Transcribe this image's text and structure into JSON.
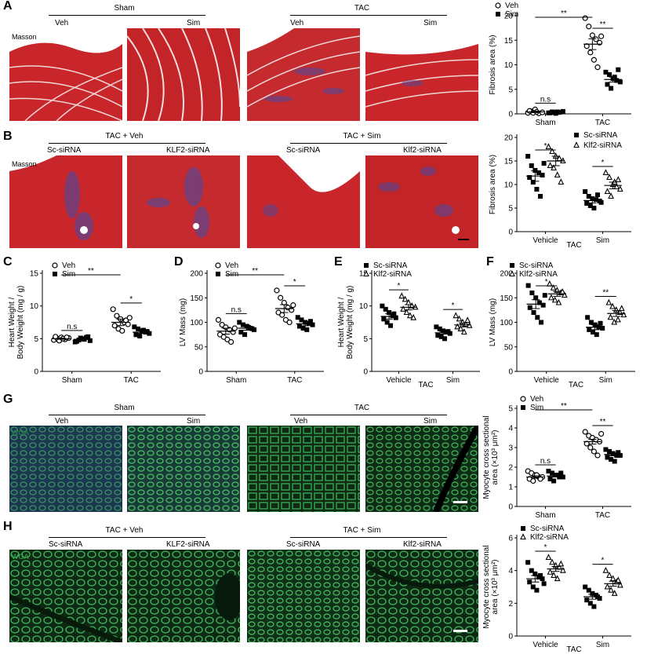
{
  "panels": {
    "A": {
      "letter": "A",
      "group1": "Sham",
      "group2": "TAC",
      "g1_left": "Veh",
      "g1_right": "Sim",
      "g2_left": "Veh",
      "g2_right": "Sim",
      "stain": "Masson"
    },
    "B": {
      "letter": "B",
      "group1": "TAC + Veh",
      "group2": "TAC + Sim",
      "g1_left": "Sc-siRNA",
      "g1_right": "KLF2-siRNA",
      "g2_left": "Sc-siRNA",
      "g2_right": "Klf2-siRNA",
      "stain": "Masson"
    },
    "C": {
      "letter": "C"
    },
    "D": {
      "letter": "D"
    },
    "E": {
      "letter": "E"
    },
    "F": {
      "letter": "F"
    },
    "G": {
      "letter": "G",
      "group1": "Sham",
      "group2": "TAC",
      "g1_left": "Veh",
      "g1_right": "Sim",
      "g2_left": "Veh",
      "g2_right": "Sim",
      "stain": "WGA"
    },
    "H": {
      "letter": "H",
      "group1": "TAC + Veh",
      "group2": "TAC + Sim",
      "g1_left": "Sc-siRNA",
      "g1_right": "KLF2-siRNA",
      "g2_left": "Sc-siRNA",
      "g2_right": "Klf2-siRNA",
      "stain": "WGA"
    }
  },
  "colors": {
    "masson_red": "#c8262b",
    "masson_blue": "#4a4aa0",
    "wga_green": "#2fae45",
    "wga_dark": "#0f2a14"
  },
  "chart_data": [
    {
      "id": "A",
      "type": "scatter",
      "categories": [
        "Sham",
        "TAC"
      ],
      "ylabel": "Fibrosis area (%)",
      "ylim": [
        0,
        20
      ],
      "yticks": [
        0,
        5,
        10,
        15,
        20
      ],
      "legend": [
        "Veh",
        "Sim"
      ],
      "legend_position": "top",
      "series": [
        {
          "name": "Veh",
          "marker": "open-circle",
          "mean": [
            0.4,
            14.2
          ],
          "sem": [
            0.15,
            1.1
          ],
          "values": [
            [
              0.2,
              0.5,
              0.9,
              0.1,
              0.3,
              0.6,
              0.2,
              0.4
            ],
            [
              19.5,
              17.8,
              16.0,
              15.2,
              14.5,
              13.8,
              12.5,
              11.0,
              9.5,
              15.8
            ]
          ]
        },
        {
          "name": "Sim",
          "marker": "filled-square",
          "mean": [
            0.3,
            7.0
          ],
          "sem": [
            0.1,
            0.5
          ],
          "values": [
            [
              0.2,
              0.4,
              0.1,
              0.3,
              0.5,
              0.2,
              0.3,
              0.4
            ],
            [
              8.5,
              8.0,
              7.2,
              6.8,
              6.5,
              6.0,
              5.2,
              7.5,
              9.0
            ]
          ]
        }
      ],
      "annotations": [
        {
          "text": "n.s",
          "pair": [
            [
              0,
              0
            ],
            [
              0,
              1
            ]
          ]
        },
        {
          "text": "**",
          "pair": [
            [
              0,
              0
            ],
            [
              1,
              0
            ]
          ]
        },
        {
          "text": "**",
          "pair": [
            [
              1,
              0
            ],
            [
              1,
              1
            ]
          ]
        }
      ]
    },
    {
      "id": "B",
      "type": "scatter",
      "categories": [
        "Vehicle",
        "Sim"
      ],
      "xlabel": "TAC",
      "ylabel": "Fibrosis area (%)",
      "ylim": [
        0,
        20
      ],
      "yticks": [
        0,
        5,
        10,
        15,
        20
      ],
      "legend": [
        "Sc-siRNA",
        "Klf2-siRNA"
      ],
      "legend_position": "top",
      "series": [
        {
          "name": "Sc-siRNA",
          "marker": "filled-square",
          "mean": [
            11.8,
            6.6
          ],
          "sem": [
            1.1,
            0.5
          ],
          "values": [
            [
              16.0,
              14.0,
              13.0,
              12.5,
              12.0,
              11.5,
              10.5,
              9.0,
              7.5,
              14.5
            ],
            [
              8.5,
              7.5,
              7.0,
              6.8,
              6.5,
              6.0,
              5.5,
              5.0,
              7.8,
              6.2
            ]
          ]
        },
        {
          "name": "Klf2-siRNA",
          "marker": "open-triangle",
          "mean": [
            15.0,
            9.8
          ],
          "sem": [
            1.0,
            0.7
          ],
          "values": [
            [
              18.0,
              17.0,
              16.0,
              15.5,
              15.0,
              14.0,
              13.5,
              12.0,
              10.5
            ],
            [
              12.5,
              11.5,
              10.0,
              9.5,
              9.0,
              8.5,
              7.5,
              10.5,
              11.0
            ]
          ]
        }
      ],
      "annotations": [
        {
          "text": "*",
          "pair": [
            [
              0,
              0
            ],
            [
              0,
              1
            ]
          ]
        },
        {
          "text": "*",
          "pair": [
            [
              1,
              0
            ],
            [
              1,
              1
            ]
          ]
        }
      ]
    },
    {
      "id": "C",
      "type": "scatter",
      "categories": [
        "Sham",
        "TAC"
      ],
      "ylabel_lines": [
        "Heart Weight /",
        "Body Weight (mg / g)"
      ],
      "ylim": [
        0,
        15
      ],
      "yticks": [
        0,
        5,
        10,
        15
      ],
      "legend": [
        "Veh",
        "Sim"
      ],
      "legend_position": "top",
      "series": [
        {
          "name": "Veh",
          "marker": "open-circle",
          "mean": [
            5.0,
            7.5
          ],
          "sem": [
            0.1,
            0.5
          ],
          "values": [
            [
              4.8,
              5.0,
              5.2,
              4.9,
              5.1,
              5.3,
              4.7,
              5.0,
              5.2
            ],
            [
              9.5,
              8.5,
              8.0,
              7.5,
              7.2,
              7.0,
              6.5,
              6.2,
              7.8,
              8.2
            ]
          ]
        },
        {
          "name": "Sim",
          "marker": "filled-square",
          "mean": [
            4.9,
            6.0
          ],
          "sem": [
            0.1,
            0.2
          ],
          "values": [
            [
              4.5,
              4.8,
              5.0,
              5.2,
              4.7,
              4.6,
              5.1,
              4.9,
              5.3
            ],
            [
              6.8,
              6.5,
              6.2,
              6.0,
              5.8,
              5.6,
              5.4,
              6.3,
              6.1
            ]
          ]
        }
      ],
      "annotations": [
        {
          "text": "n.s",
          "pair": [
            [
              0,
              0
            ],
            [
              0,
              1
            ]
          ]
        },
        {
          "text": "**",
          "pair": [
            [
              0,
              0
            ],
            [
              1,
              0
            ]
          ]
        },
        {
          "text": "*",
          "pair": [
            [
              1,
              0
            ],
            [
              1,
              1
            ]
          ]
        }
      ]
    },
    {
      "id": "D",
      "type": "scatter",
      "categories": [
        "Sham",
        "TAC"
      ],
      "ylabel": "LV Mass (mg)",
      "ylim": [
        0,
        200
      ],
      "yticks": [
        0,
        50,
        100,
        150,
        200
      ],
      "legend": [
        "Veh",
        "Sim"
      ],
      "legend_position": "top",
      "series": [
        {
          "name": "Veh",
          "marker": "open-circle",
          "mean": [
            82,
            128
          ],
          "sem": [
            6,
            8
          ],
          "values": [
            [
              105,
              95,
              90,
              85,
              80,
              75,
              70,
              65,
              60,
              88
            ],
            [
              165,
              150,
              140,
              130,
              125,
              120,
              115,
              105,
              100,
              135
            ]
          ]
        },
        {
          "name": "Sim",
          "marker": "filled-square",
          "mean": [
            88,
            97
          ],
          "sem": [
            4,
            4
          ],
          "values": [
            [
              100,
              95,
              92,
              88,
              85,
              80,
              75,
              90,
              87
            ],
            [
              110,
              105,
              100,
              98,
              95,
              92,
              88,
              85,
              102
            ]
          ]
        }
      ],
      "annotations": [
        {
          "text": "n.s",
          "pair": [
            [
              0,
              0
            ],
            [
              0,
              1
            ]
          ]
        },
        {
          "text": "**",
          "pair": [
            [
              0,
              0
            ],
            [
              1,
              0
            ]
          ]
        },
        {
          "text": "*",
          "pair": [
            [
              1,
              0
            ],
            [
              1,
              1
            ]
          ]
        }
      ]
    },
    {
      "id": "E",
      "type": "scatter",
      "categories": [
        "Vehicle",
        "Sim"
      ],
      "xlabel": "TAC",
      "ylabel_lines": [
        "Heart Weight /",
        "Body Weight (mg / g)"
      ],
      "ylim": [
        0,
        15
      ],
      "yticks": [
        0,
        5,
        10,
        15
      ],
      "legend": [
        "Sc-siRNA",
        "Klf2-siRNA"
      ],
      "legend_position": "top",
      "series": [
        {
          "name": "Sc-siRNA",
          "marker": "filled-square",
          "mean": [
            8.4,
            5.9
          ],
          "sem": [
            0.4,
            0.2
          ],
          "values": [
            [
              10.0,
              9.5,
              9.0,
              8.5,
              8.2,
              8.0,
              7.5,
              7.0,
              8.8
            ],
            [
              6.8,
              6.5,
              6.2,
              6.0,
              5.8,
              5.5,
              5.3,
              5.0,
              6.1
            ]
          ]
        },
        {
          "name": "Klf2-siRNA",
          "marker": "open-triangle",
          "mean": [
            9.8,
            7.1
          ],
          "sem": [
            0.4,
            0.3
          ],
          "values": [
            [
              11.5,
              11.0,
              10.5,
              10.0,
              9.8,
              9.5,
              9.0,
              8.5,
              8.2
            ],
            [
              8.5,
              8.0,
              7.5,
              7.2,
              7.0,
              6.8,
              6.5,
              6.0,
              7.8
            ]
          ]
        }
      ],
      "annotations": [
        {
          "text": "*",
          "pair": [
            [
              0,
              0
            ],
            [
              0,
              1
            ]
          ]
        },
        {
          "text": "*",
          "pair": [
            [
              1,
              0
            ],
            [
              1,
              1
            ]
          ]
        }
      ]
    },
    {
      "id": "F",
      "type": "scatter",
      "categories": [
        "Vehicle",
        "Sim"
      ],
      "xlabel": "TAC",
      "ylabel": "LV Mass (mg)",
      "ylim": [
        0,
        200
      ],
      "yticks": [
        0,
        50,
        100,
        150,
        200
      ],
      "legend": [
        "Sc-siRNA",
        "Klf2-siRNA"
      ],
      "legend_position": "top",
      "series": [
        {
          "name": "Sc-siRNA",
          "marker": "filled-square",
          "mean": [
            137,
            90
          ],
          "sem": [
            9,
            5
          ],
          "values": [
            [
              175,
              160,
              150,
              140,
              135,
              130,
              120,
              110,
              100,
              155
            ],
            [
              110,
              100,
              95,
              90,
              88,
              85,
              80,
              75,
              98
            ]
          ]
        },
        {
          "name": "Klf2-siRNA",
          "marker": "open-triangle",
          "mean": [
            158,
            118
          ],
          "sem": [
            5,
            6
          ],
          "values": [
            [
              178,
              170,
              165,
              160,
              155,
              150,
              145,
              140,
              162
            ],
            [
              140,
              132,
              125,
              120,
              115,
              110,
              100,
              105,
              128
            ]
          ]
        }
      ],
      "annotations": [
        {
          "text": "*",
          "pair": [
            [
              0,
              0
            ],
            [
              0,
              1
            ]
          ]
        },
        {
          "text": "**",
          "pair": [
            [
              1,
              0
            ],
            [
              1,
              1
            ]
          ]
        }
      ]
    },
    {
      "id": "G",
      "type": "scatter",
      "categories": [
        "Sham",
        "TAC"
      ],
      "ylabel_lines": [
        "Myocyte cross sectional",
        "area (×10³ μm²)"
      ],
      "ylim": [
        0,
        5
      ],
      "yticks": [
        0,
        1,
        2,
        3,
        4,
        5
      ],
      "legend": [
        "Veh",
        "Sim"
      ],
      "legend_position": "top",
      "series": [
        {
          "name": "Veh",
          "marker": "open-circle",
          "mean": [
            1.5,
            3.3
          ],
          "sem": [
            0.06,
            0.12
          ],
          "values": [
            [
              1.8,
              1.7,
              1.6,
              1.5,
              1.5,
              1.4,
              1.3,
              1.6,
              1.4
            ],
            [
              3.8,
              3.6,
              3.5,
              3.4,
              3.3,
              3.2,
              3.0,
              2.8,
              2.6,
              3.7
            ]
          ]
        },
        {
          "name": "Sim",
          "marker": "filled-square",
          "mean": [
            1.55,
            2.65
          ],
          "sem": [
            0.05,
            0.07
          ],
          "values": [
            [
              1.8,
              1.7,
              1.6,
              1.5,
              1.5,
              1.4,
              1.3,
              1.6,
              1.7
            ],
            [
              2.9,
              2.8,
              2.7,
              2.6,
              2.6,
              2.5,
              2.4,
              2.3,
              2.75
            ]
          ]
        }
      ],
      "annotations": [
        {
          "text": "n.s",
          "pair": [
            [
              0,
              0
            ],
            [
              0,
              1
            ]
          ]
        },
        {
          "text": "**",
          "pair": [
            [
              0,
              0
            ],
            [
              1,
              0
            ]
          ]
        },
        {
          "text": "**",
          "pair": [
            [
              1,
              0
            ],
            [
              1,
              1
            ]
          ]
        }
      ]
    },
    {
      "id": "H",
      "type": "scatter",
      "categories": [
        "Vehicle",
        "Sim"
      ],
      "xlabel": "TAC",
      "ylabel_lines": [
        "Myocyte cross sectional",
        "area (×10³ μm²)"
      ],
      "ylim": [
        0,
        6
      ],
      "yticks": [
        0,
        2,
        4,
        6
      ],
      "legend": [
        "Sc-siRNA",
        "Klf2-siRNA"
      ],
      "legend_position": "top",
      "series": [
        {
          "name": "Sc-siRNA",
          "marker": "filled-square",
          "mean": [
            3.5,
            2.4
          ],
          "sem": [
            0.2,
            0.15
          ],
          "values": [
            [
              4.5,
              4.0,
              3.8,
              3.6,
              3.5,
              3.3,
              3.0,
              2.8,
              3.7,
              3.2
            ],
            [
              3.0,
              2.8,
              2.6,
              2.5,
              2.3,
              2.2,
              2.0,
              1.8,
              2.4
            ]
          ]
        },
        {
          "name": "Klf2-siRNA",
          "marker": "open-triangle",
          "mean": [
            4.1,
            3.2
          ],
          "sem": [
            0.15,
            0.15
          ],
          "values": [
            [
              4.8,
              4.5,
              4.3,
              4.2,
              4.0,
              3.9,
              3.7,
              3.5,
              4.4
            ],
            [
              4.0,
              3.7,
              3.5,
              3.3,
              3.1,
              3.0,
              2.8,
              2.6,
              3.4
            ]
          ]
        }
      ],
      "annotations": [
        {
          "text": "*",
          "pair": [
            [
              0,
              0
            ],
            [
              0,
              1
            ]
          ]
        },
        {
          "text": "*",
          "pair": [
            [
              1,
              0
            ],
            [
              1,
              1
            ]
          ]
        }
      ]
    }
  ]
}
